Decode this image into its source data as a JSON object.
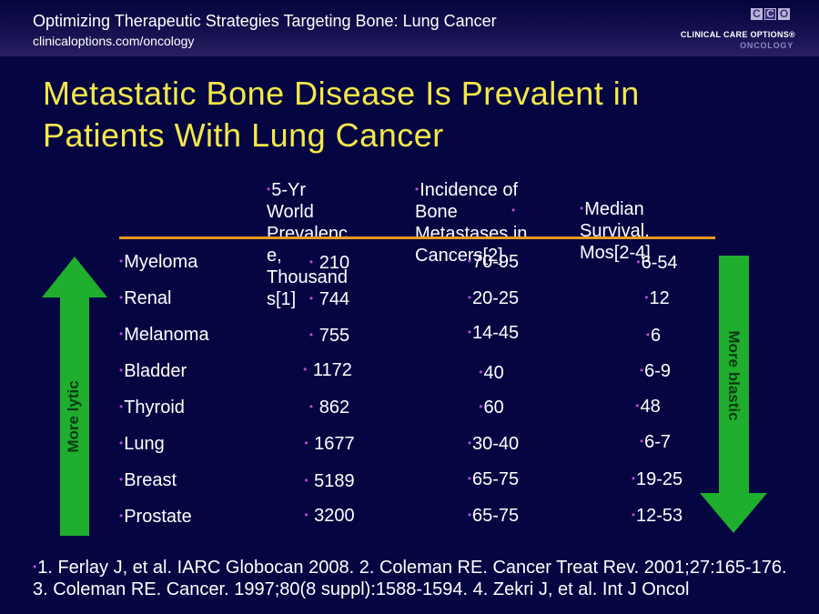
{
  "header": {
    "title": "Optimizing Therapeutic Strategies Targeting Bone: Lung Cancer",
    "url": "clinicaloptions.com/oncology",
    "logo_letters": [
      "C",
      "C",
      "O"
    ],
    "logo_name": "CLINICAL CARE OPTIONS®",
    "logo_sub": "ONCOLOGY"
  },
  "slide": {
    "title_line1": "Metastatic Bone Disease Is Prevalent in",
    "title_line2": "Patients With Lung Cancer"
  },
  "table": {
    "columns": [
      "5-Yr World Prevalence, Thousands[1]",
      "Incidence of Bone Metastases in Cancers[2]",
      "Median Survival, Mos[2-4]"
    ],
    "col1_lines": [
      "5-Yr",
      "World",
      "Prevalenc",
      "e,",
      "Thousand",
      "s[1]"
    ],
    "col2_lines": [
      "Incidence of",
      "Bone",
      "Metastases in",
      "Cancers[2]"
    ],
    "col3_lines": [
      "Median",
      "Survival,",
      "Mos[2-4]"
    ],
    "rows": [
      {
        "label": "Myeloma",
        "prevalence": "210",
        "incidence": "70-95",
        "survival": "6-54"
      },
      {
        "label": "Renal",
        "prevalence": "744",
        "incidence": "20-25",
        "survival": "12"
      },
      {
        "label": "Melanoma",
        "prevalence": "755",
        "incidence": "14-45",
        "survival": "6"
      },
      {
        "label": "Bladder",
        "prevalence": "1172",
        "incidence": "40",
        "survival": "6-9"
      },
      {
        "label": "Thyroid",
        "prevalence": "862",
        "incidence": "60",
        "survival": "48"
      },
      {
        "label": "Lung",
        "prevalence": "1677",
        "incidence": "30-40",
        "survival": "6-7"
      },
      {
        "label": "Breast",
        "prevalence": "5189",
        "incidence": "65-75",
        "survival": "19-25"
      },
      {
        "label": "Prostate",
        "prevalence": "3200",
        "incidence": "65-75",
        "survival": "12-53"
      }
    ]
  },
  "arrows": {
    "left_label": "More lytic",
    "right_label": "More blastic",
    "color": "#1fae2e"
  },
  "footnote": {
    "line1": "1. Ferlay J, et al. IARC Globocan 2008. 2. Coleman RE. Cancer Treat Rev. 2001;27:165-176.",
    "line2": "3. Coleman RE. Cancer. 1997;80(8 suppl):1588-1594. 4. Zekri J, et al. Int J Oncol"
  }
}
